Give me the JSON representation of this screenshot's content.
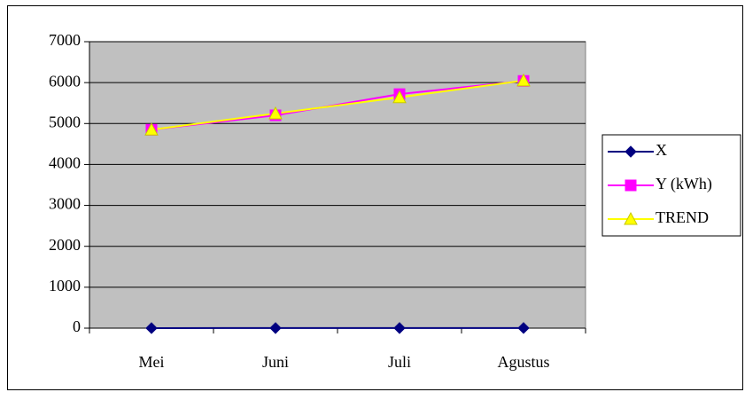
{
  "chart_data": {
    "type": "line",
    "categories": [
      "Mei",
      "Juni",
      "Juli",
      "Agustus"
    ],
    "series": [
      {
        "name": "X",
        "color": "#000080",
        "marker": "diamond",
        "values": [
          1,
          2,
          3,
          4
        ]
      },
      {
        "name": "Y (kWh)",
        "color": "#FF00FF",
        "marker": "square",
        "values": [
          4850,
          5200,
          5720,
          6040
        ]
      },
      {
        "name": "TREND",
        "color": "#FFFF00",
        "marker": "triangle",
        "values": [
          4850,
          5245,
          5640,
          6050
        ]
      }
    ],
    "ylim": [
      0,
      7000
    ],
    "yticks": [
      0,
      1000,
      2000,
      3000,
      4000,
      5000,
      6000,
      7000
    ],
    "grid": true,
    "legend": "right",
    "plot_background": "#C0C0C0"
  }
}
